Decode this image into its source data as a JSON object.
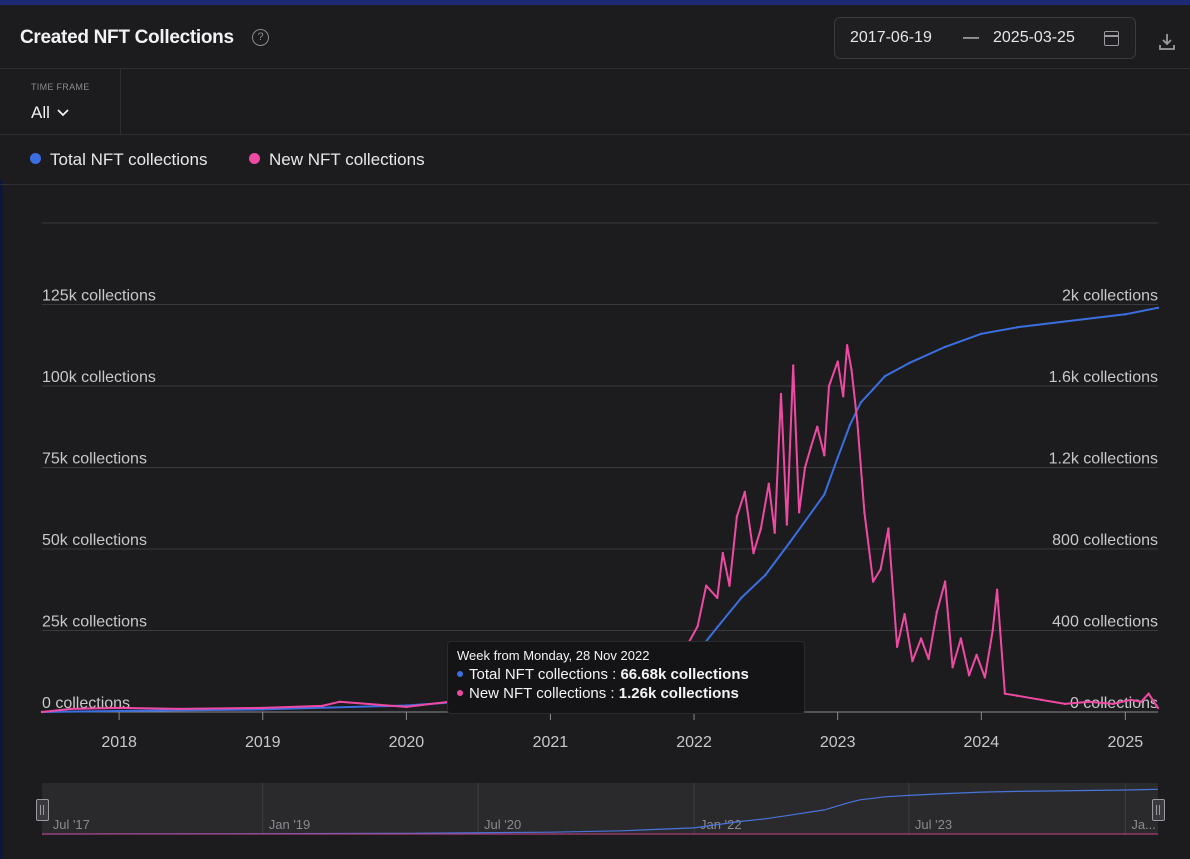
{
  "header": {
    "title": "Created NFT Collections",
    "help_icon": "help-circle-icon",
    "date_start": "2017-06-19",
    "date_separator": "—",
    "date_end": "2025-03-25",
    "calendar_icon": "calendar-icon",
    "download_icon": "download-icon"
  },
  "timeframe": {
    "label": "TIME FRAME",
    "value": "All",
    "chevron_icon": "chevron-down-icon"
  },
  "legend": [
    {
      "label": "Total NFT collections",
      "color": "#3b6fe0"
    },
    {
      "label": "New NFT collections",
      "color": "#ef4aa3"
    }
  ],
  "tooltip": {
    "header": "Week from Monday, 28 Nov 2022",
    "rows": [
      {
        "label": "Total NFT collections : ",
        "value": "66.68k collections",
        "color": "#3b6fe0"
      },
      {
        "label": "New NFT collections : ",
        "value": "1.26k collections",
        "color": "#ef4aa3"
      }
    ]
  },
  "navigator": {
    "labels": [
      "Jul '17",
      "Jan '19",
      "Jul '20",
      "Jan '22",
      "Jul '23",
      "Ja..."
    ]
  },
  "chart_data": {
    "type": "line",
    "x_range": [
      "2017-06-19",
      "2025-03-25"
    ],
    "x_ticks": [
      "2018",
      "2019",
      "2020",
      "2021",
      "2022",
      "2023",
      "2024",
      "2025"
    ],
    "y_left": {
      "ticks": [
        0,
        25000,
        50000,
        75000,
        100000,
        125000
      ],
      "tick_labels": [
        "0 collections",
        "25k collections",
        "50k collections",
        "75k collections",
        "100k collections",
        "125k collections"
      ],
      "range": [
        0,
        150000
      ]
    },
    "y_right": {
      "ticks": [
        0,
        400,
        800,
        1200,
        1600,
        2000
      ],
      "tick_labels": [
        "0 collections",
        "400 collections",
        "800 collections",
        "1.2k collections",
        "1.6k collections",
        "2k collections"
      ],
      "range": [
        0,
        2400
      ]
    },
    "grid": true,
    "legend_position": "top-left",
    "series": [
      {
        "name": "Total NFT collections",
        "axis": "left",
        "color": "#3b6fe0",
        "x": [
          "2017-06-19",
          "2018-01-01",
          "2019-01-01",
          "2020-01-01",
          "2021-01-01",
          "2021-07-01",
          "2022-01-01",
          "2022-03-01",
          "2022-05-01",
          "2022-07-01",
          "2022-09-01",
          "2022-11-28",
          "2023-01-01",
          "2023-02-01",
          "2023-03-01",
          "2023-04-01",
          "2023-05-01",
          "2023-07-01",
          "2023-10-01",
          "2024-01-01",
          "2024-04-01",
          "2025-01-01",
          "2025-03-25"
        ],
        "values": [
          0,
          300,
          800,
          2000,
          5000,
          9000,
          17000,
          26000,
          35000,
          42000,
          52000,
          66680,
          78000,
          88000,
          95000,
          99000,
          103000,
          107000,
          112000,
          116000,
          118000,
          122000,
          124000
        ]
      },
      {
        "name": "New NFT collections",
        "axis": "right",
        "color": "#ef4aa3",
        "x": [
          "2017-06-19",
          "2017-09-01",
          "2018-01-01",
          "2018-06-01",
          "2019-01-01",
          "2019-06-01",
          "2019-07-15",
          "2020-01-01",
          "2020-06-01",
          "2020-12-01",
          "2021-03-01",
          "2021-06-01",
          "2021-08-15",
          "2021-09-01",
          "2021-10-01",
          "2021-11-01",
          "2021-12-01",
          "2022-01-10",
          "2022-02-01",
          "2022-03-01",
          "2022-03-15",
          "2022-04-01",
          "2022-04-20",
          "2022-05-10",
          "2022-06-01",
          "2022-06-20",
          "2022-07-10",
          "2022-07-25",
          "2022-08-10",
          "2022-08-25",
          "2022-09-10",
          "2022-09-25",
          "2022-10-10",
          "2022-10-25",
          "2022-11-10",
          "2022-11-28",
          "2022-12-10",
          "2023-01-01",
          "2023-01-15",
          "2023-01-25",
          "2023-02-05",
          "2023-02-20",
          "2023-03-10",
          "2023-04-01",
          "2023-04-20",
          "2023-05-10",
          "2023-06-01",
          "2023-06-20",
          "2023-07-10",
          "2023-08-01",
          "2023-08-20",
          "2023-09-10",
          "2023-10-01",
          "2023-10-20",
          "2023-11-10",
          "2023-12-01",
          "2023-12-20",
          "2024-01-10",
          "2024-01-30",
          "2024-02-10",
          "2024-03-01",
          "2024-04-01",
          "2024-06-01",
          "2024-08-01",
          "2024-10-01",
          "2024-12-01",
          "2025-01-15",
          "2025-02-10",
          "2025-03-01",
          "2025-03-25"
        ],
        "values": [
          0,
          15,
          20,
          15,
          20,
          30,
          50,
          25,
          60,
          90,
          45,
          25,
          320,
          180,
          200,
          160,
          280,
          420,
          620,
          560,
          780,
          620,
          960,
          1080,
          780,
          900,
          1120,
          880,
          1560,
          920,
          1700,
          980,
          1200,
          1300,
          1400,
          1260,
          1600,
          1720,
          1550,
          1800,
          1680,
          1420,
          980,
          640,
          700,
          900,
          320,
          480,
          250,
          360,
          260,
          490,
          640,
          220,
          360,
          180,
          280,
          170,
          400,
          600,
          90,
          80,
          60,
          40,
          50,
          40,
          60,
          50,
          90,
          20
        ]
      }
    ]
  }
}
